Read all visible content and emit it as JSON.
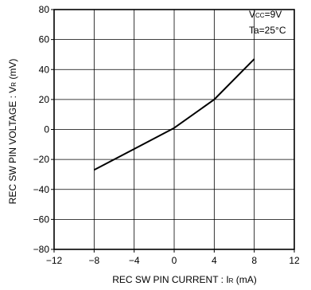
{
  "chart_data": {
    "type": "line",
    "xlabel": "REC  SW  PIN  CURRENT : IR (mA)",
    "ylabel": "REC SW PIN  VOLTAGE : VR (mV)",
    "xlim": [
      -12,
      12
    ],
    "ylim": [
      -80,
      80
    ],
    "xticks": [
      -12,
      -8,
      -4,
      0,
      4,
      8,
      12
    ],
    "yticks": [
      -80,
      -60,
      -40,
      -20,
      0,
      20,
      40,
      60,
      80
    ],
    "xtick_labels": [
      "−12",
      "−8",
      "−4",
      "0",
      "4",
      "8",
      "12"
    ],
    "ytick_labels": [
      "−80",
      "−60",
      "−40",
      "−20",
      "0",
      "20",
      "40",
      "60",
      "80"
    ],
    "grid": true,
    "series": [
      {
        "x": [
          -8,
          -4,
          0,
          4,
          8
        ],
        "y": [
          -27,
          -13,
          1,
          20,
          47
        ]
      }
    ],
    "annotations": [
      "Vcc=9V",
      "Ta=25°C"
    ]
  }
}
